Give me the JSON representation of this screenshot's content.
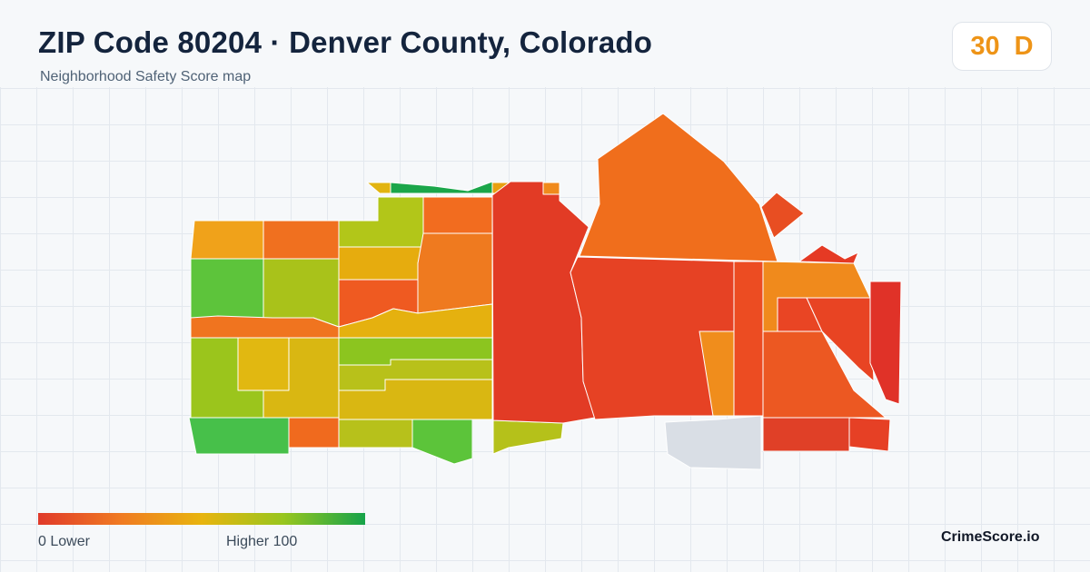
{
  "header": {
    "title": "ZIP Code 80204 · Denver County, Colorado",
    "subtitle": "Neighborhood Safety Score map"
  },
  "score": {
    "value": "30",
    "grade": "D",
    "color": "#ee9417"
  },
  "legend": {
    "min_label": "0  Lower",
    "max_label": "Higher  100",
    "colors": [
      "#e03a2a",
      "#f07a22",
      "#e8b40e",
      "#98c61e",
      "#16a34a"
    ]
  },
  "brand": "CrimeScore.io",
  "map": {
    "no_data_color": "#d9dee5",
    "region_colors": {
      "r01": "#f0a21a",
      "r02": "#f0701f",
      "r03": "#b2c619",
      "r04": "#e6ac0e",
      "r05": "#5dc43b",
      "r06": "#a9c21a",
      "r07": "#f26c1f",
      "r08": "#ef5a21",
      "r09": "#ef7a1f",
      "r10": "#e5b10f",
      "r11": "#8cc51f",
      "r12": "#e1b811",
      "r13": "#d9b712",
      "r14": "#b8c11a",
      "r15": "#9bc51c",
      "r16": "#b5c01a",
      "r17": "#d9b712",
      "r18": "#47c04a",
      "r19": "#f0741f",
      "r20": "#b7c11b",
      "r21": "#5cc43a",
      "r22": "#b5c11a",
      "r23": "#e23b25",
      "r24": "#f06a1e",
      "r25": "#ec4c22",
      "r26": "#e64224",
      "r27": "#e84e22",
      "r28": "#f06e1c",
      "r29": "#f08d1c",
      "r30": "#e94524",
      "r31": "#e53a24",
      "r32": "#ec5822",
      "r33": "#e84423",
      "r34": "#ea5023",
      "r35": "#e03228",
      "r36": "#e8a010",
      "r37": "#b6c11a",
      "r38": "#1ba64a",
      "r39": "#e2b410",
      "r40": "#f08a1c",
      "r41": "#e04027",
      "r42": "#e64025"
    }
  }
}
